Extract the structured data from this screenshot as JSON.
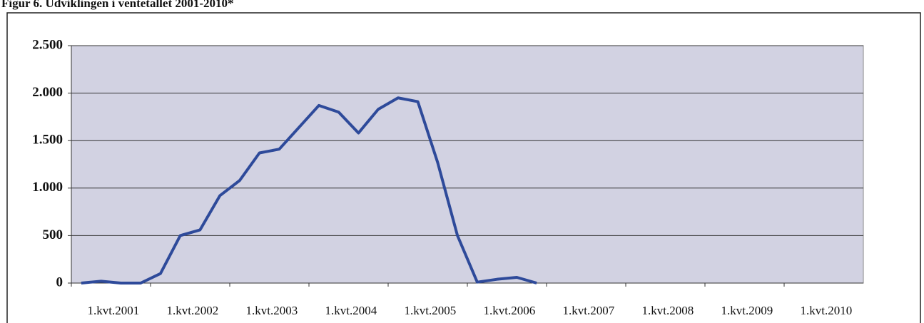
{
  "chart_data": {
    "type": "line",
    "title": "Figur 6. Udviklingen i ventetallet 2001-2010*",
    "categories": [
      "1.kvt.2001",
      null,
      null,
      null,
      "1.kvt.2002",
      null,
      null,
      null,
      "1.kvt.2003",
      null,
      null,
      null,
      "1.kvt.2004",
      null,
      null,
      null,
      "1.kvt.2005",
      null,
      null,
      null,
      "1.kvt.2006",
      null,
      null,
      null,
      "1.kvt.2007",
      null,
      null,
      null,
      "1.kvt.2008",
      null,
      null,
      null,
      "1.kvt.2009",
      null,
      null,
      null,
      "1.kvt.2010",
      null,
      null,
      null
    ],
    "series": [
      {
        "color": "#2e4a9a",
        "values": [
          0,
          20,
          0,
          0,
          100,
          500,
          560,
          920,
          1080,
          1370,
          1410,
          1640,
          1870,
          1800,
          1580,
          1830,
          1950,
          1910,
          1270,
          500,
          10,
          40,
          60,
          0,
          null,
          null,
          null,
          null,
          null,
          null,
          null,
          null,
          null,
          null,
          null,
          null,
          null,
          null,
          null,
          null
        ]
      }
    ],
    "ylim": [
      0,
      2500
    ],
    "yticks": [
      0,
      500,
      {
        "value": 1000,
        "label": "1.000"
      },
      {
        "value": 1500,
        "label": "1.500"
      },
      {
        "value": 2000,
        "label": "2.000"
      },
      {
        "value": 2500,
        "label": "2.500"
      }
    ],
    "grid": true
  }
}
